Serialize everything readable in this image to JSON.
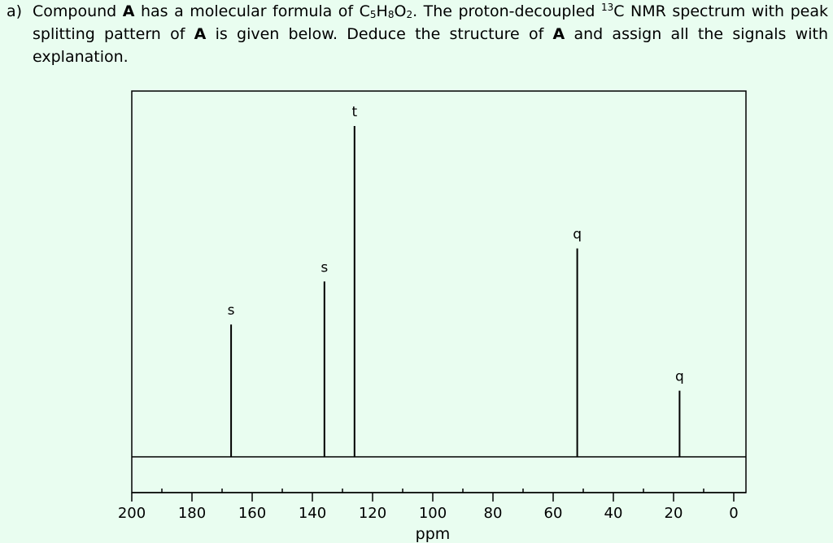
{
  "question": {
    "label": "a)",
    "p1": "Compound ",
    "compound": "A",
    "p2": " has a molecular formula of C",
    "c_sub": "5",
    "h": "H",
    "h_sub": "8",
    "o": "O",
    "o_sub": "2",
    "p3": ". The proton-decoupled ",
    "isotope": "13",
    "p4": "C NMR spectrum with peak splitting pattern of ",
    "compound2": "A",
    "p5": " is given below. Deduce the structure of ",
    "compound3": "A",
    "p6": " and assign all the signals with explanation."
  },
  "chart_data": {
    "type": "line",
    "xlabel": "ppm",
    "xlim": [
      200,
      0
    ],
    "x_ticks": [
      200,
      180,
      160,
      140,
      120,
      100,
      80,
      60,
      40,
      20,
      0
    ],
    "peaks": [
      {
        "ppm": 167,
        "relative_height": 0.4,
        "multiplicity": "s"
      },
      {
        "ppm": 136,
        "relative_height": 0.53,
        "multiplicity": "s"
      },
      {
        "ppm": 126,
        "relative_height": 1.0,
        "multiplicity": "t"
      },
      {
        "ppm": 52,
        "relative_height": 0.63,
        "multiplicity": "q"
      },
      {
        "ppm": 18,
        "relative_height": 0.2,
        "multiplicity": "q"
      }
    ]
  },
  "colors": {
    "background": "#e9fdf0",
    "ink": "#000000"
  }
}
